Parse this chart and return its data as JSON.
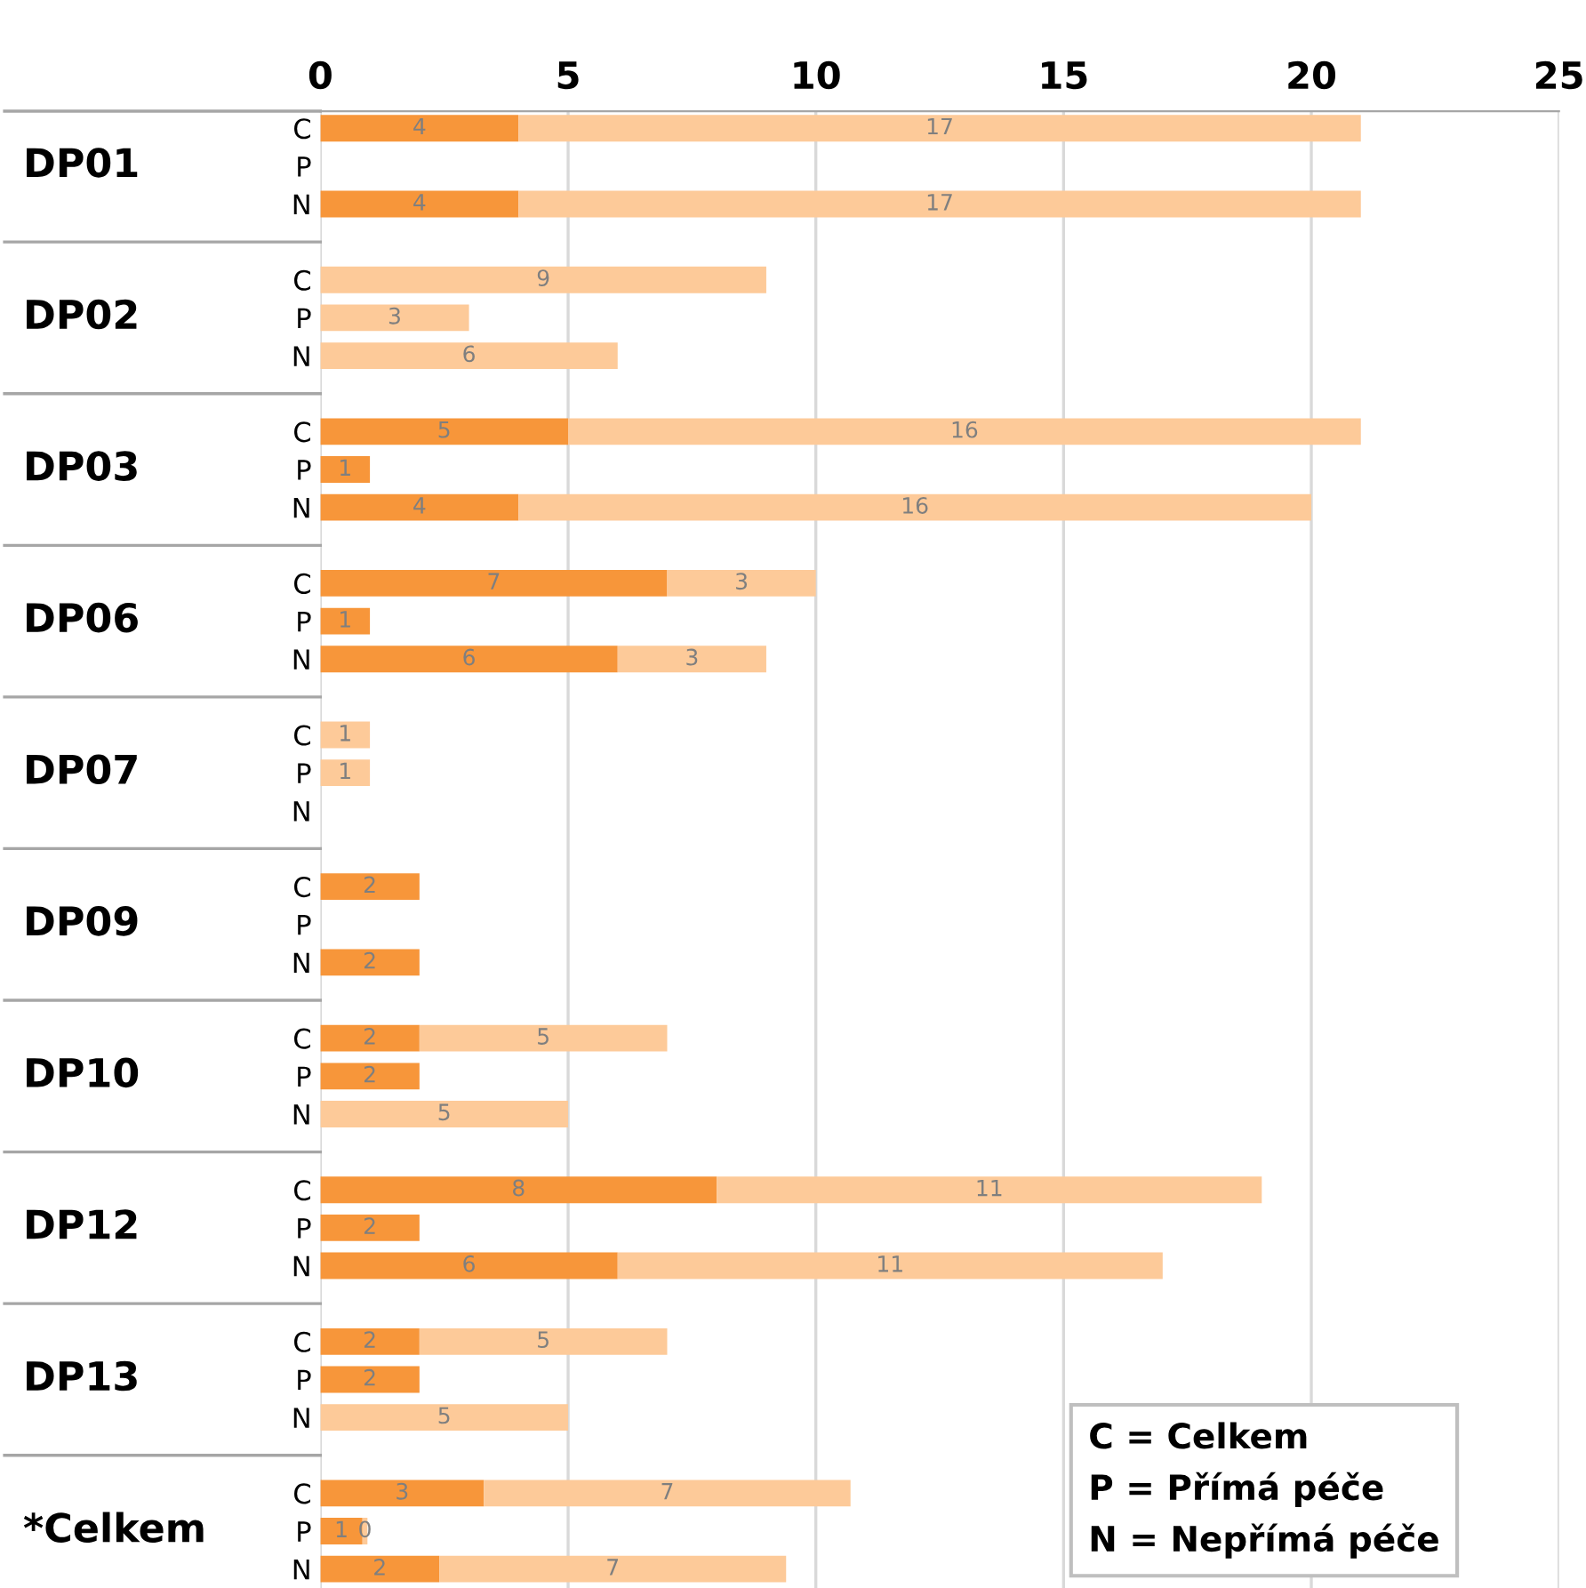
{
  "chart_data": {
    "type": "bar",
    "orientation": "horizontal",
    "stacked": true,
    "categories": [
      "C",
      "P",
      "N",
      "C",
      "P",
      "N",
      "C",
      "P",
      "N",
      "C",
      "P",
      "N",
      "C",
      "P",
      "N",
      "C",
      "P",
      "N",
      "C",
      "P",
      "N",
      "C",
      "P",
      "N",
      "C",
      "P",
      "N",
      "C",
      "P",
      "N"
    ],
    "series": [
      {
        "color": "#f7963a",
        "values": [
          4,
          null,
          4,
          null,
          null,
          null,
          5,
          1,
          4,
          7,
          1,
          6,
          null,
          null,
          null,
          2,
          null,
          2,
          2,
          2,
          null,
          8,
          2,
          6,
          2,
          2,
          null,
          3.3,
          0.85,
          2.4
        ],
        "value_labels": [
          "4",
          null,
          "4",
          null,
          null,
          null,
          "5",
          "1",
          "4",
          "7",
          "1",
          "6",
          null,
          null,
          null,
          "2",
          null,
          "2",
          "2",
          "2",
          null,
          "8",
          "2",
          "6",
          "2",
          "2",
          null,
          "3",
          "1",
          "2"
        ]
      },
      {
        "color": "#fdca99",
        "values": [
          17,
          null,
          17,
          9,
          3,
          6,
          16,
          null,
          16,
          3,
          null,
          3,
          1,
          1,
          null,
          null,
          null,
          null,
          5,
          null,
          5,
          11,
          null,
          11,
          5,
          null,
          5,
          7.4,
          0.1,
          7.0
        ],
        "value_labels": [
          "17",
          null,
          "17",
          "9",
          "3",
          "6",
          "16",
          null,
          "16",
          "3",
          null,
          "3",
          "1",
          "1",
          null,
          null,
          null,
          null,
          "5",
          null,
          "5",
          "11",
          null,
          "11",
          "5",
          null,
          "5",
          "7",
          "0",
          "7"
        ]
      }
    ],
    "xlim": [
      0,
      25
    ],
    "xticks": [
      0,
      5,
      10,
      15,
      20,
      25
    ],
    "grid": "x",
    "annotations": [
      "DP01",
      "DP02",
      "DP03",
      "DP06",
      "DP07",
      "DP09",
      "DP10",
      "DP12",
      "DP13",
      "*Celkem",
      "C = Celkem",
      "P = Přímá péče",
      "N = Nepřímá péče"
    ]
  }
}
